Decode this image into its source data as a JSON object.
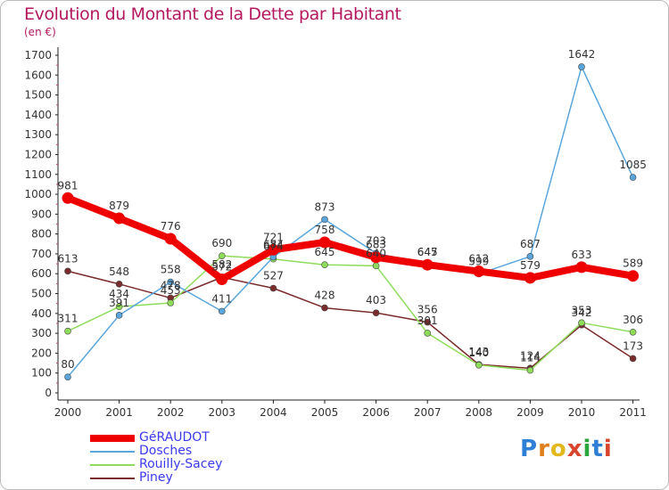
{
  "title": "Evolution du Montant de la Dette par Habitant",
  "subtitle": "(en €)",
  "logo": {
    "text": "Proxiti",
    "letter_colors": [
      "#2f7fd6",
      "#e07d1d",
      "#e2b81c",
      "#d7452d",
      "#2aa63c",
      "#2f7fd6",
      "#d7452d"
    ]
  },
  "chart_data": {
    "type": "line",
    "title": "Evolution du Montant de la Dette par Habitant",
    "ylabel": "(en €)",
    "xlabel": "",
    "x": [
      "2000",
      "2001",
      "2002",
      "2003",
      "2004",
      "2005",
      "2006",
      "2007",
      "2008",
      "2009",
      "2010",
      "2011"
    ],
    "ylim": [
      0,
      1700
    ],
    "yticks": [
      "0",
      "100",
      "200",
      "300",
      "400",
      "500",
      "600",
      "700",
      "800",
      "900",
      "1000",
      "1100",
      "1200",
      "1300",
      "1400",
      "1500",
      "1600",
      "1700"
    ],
    "grid": false,
    "legend_position": "bottom-left",
    "series": [
      {
        "name": "Piney",
        "color": "#7a2c2c",
        "values": [
          613,
          548,
          478,
          582,
          527,
          428,
          403,
          356,
          143,
          124,
          342,
          173
        ]
      },
      {
        "name": "Rouilly-Sacey",
        "color": "#8fdc5a",
        "values": [
          311,
          434,
          453,
          690,
          674,
          645,
          640,
          301,
          140,
          114,
          353,
          306
        ]
      },
      {
        "name": "Dosches",
        "color": "#5aa6dc",
        "values": [
          80,
          391,
          558,
          411,
          684,
          873,
          703,
          647,
          599,
          687,
          1642,
          1085
        ]
      },
      {
        "name": "GéRAUDOT",
        "color": "#ee0000",
        "values": [
          981,
          879,
          776,
          572,
          721,
          758,
          683,
          645,
          612,
          579,
          633,
          589
        ]
      }
    ],
    "data_labels": [
      [
        "613",
        "548",
        "478",
        "582",
        "527",
        "428",
        "403",
        "356",
        "143",
        "124",
        "342",
        "173"
      ],
      [
        "311",
        "434",
        "453",
        "690",
        "674",
        "645",
        "640",
        "301",
        "140",
        "114",
        "353",
        "306"
      ],
      [
        "80",
        "391",
        "558",
        "411",
        "684",
        "873",
        "703",
        "647",
        "599",
        "687",
        "1642",
        "1085"
      ],
      [
        "981",
        "879",
        "776",
        "572",
        "721",
        "758",
        "683",
        "645",
        "612",
        "579",
        "633",
        "589"
      ]
    ]
  },
  "legend": [
    {
      "name": "GéRAUDOT",
      "color": "#ee0000"
    },
    {
      "name": "Dosches",
      "color": "#5aa6dc"
    },
    {
      "name": "Rouilly-Sacey",
      "color": "#8fdc5a"
    },
    {
      "name": "Piney",
      "color": "#7a2c2c"
    }
  ]
}
